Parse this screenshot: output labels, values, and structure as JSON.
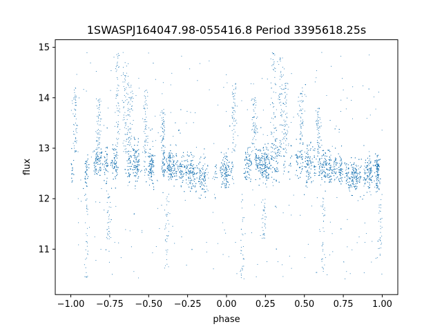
{
  "chart_data": {
    "type": "scatter",
    "title": "1SWASPJ164047.98-055416.8 Period 3395618.25s",
    "xlabel": "phase",
    "ylabel": "flux",
    "xlim": [
      -1.1,
      1.1
    ],
    "ylim": [
      10.1,
      15.15
    ],
    "x_ticks": [
      -1.0,
      -0.75,
      -0.5,
      -0.25,
      0.0,
      0.25,
      0.5,
      0.75,
      1.0
    ],
    "x_tick_labels": [
      "−1.00",
      "−0.75",
      "−0.50",
      "−0.25",
      "0.00",
      "0.25",
      "0.50",
      "0.75",
      "1.00"
    ],
    "y_ticks": [
      11,
      12,
      13,
      14,
      15
    ],
    "y_tick_labels": [
      "11",
      "12",
      "13",
      "14",
      "15"
    ],
    "grid": false,
    "legend": "none",
    "marker_color": "#1f77b4",
    "series": [
      {
        "phase_profile": [
          {
            "x": 0.0,
            "median": 12.55,
            "spread": 0.3
          },
          {
            "x": 0.05,
            "median": 12.55,
            "spread": 0.35
          },
          {
            "x": 0.08,
            "median": 12.35,
            "spread": 0.3
          },
          {
            "x": 0.12,
            "median": 12.65,
            "spread": 0.3
          },
          {
            "x": 0.18,
            "median": 12.75,
            "spread": 0.3
          },
          {
            "x": 0.22,
            "median": 12.7,
            "spread": 0.35
          },
          {
            "x": 0.28,
            "median": 12.65,
            "spread": 0.3
          },
          {
            "x": 0.32,
            "median": 12.75,
            "spread": 0.45
          },
          {
            "x": 0.38,
            "median": 12.75,
            "spread": 0.35
          },
          {
            "x": 0.45,
            "median": 12.7,
            "spread": 0.3
          },
          {
            "x": 0.5,
            "median": 12.65,
            "spread": 0.3
          },
          {
            "x": 0.58,
            "median": 12.7,
            "spread": 0.3
          },
          {
            "x": 0.65,
            "median": 12.65,
            "spread": 0.3
          },
          {
            "x": 0.72,
            "median": 12.6,
            "spread": 0.3
          },
          {
            "x": 0.8,
            "median": 12.45,
            "spread": 0.3
          },
          {
            "x": 0.88,
            "median": 12.45,
            "spread": 0.3
          },
          {
            "x": 0.95,
            "median": 12.55,
            "spread": 0.3
          },
          {
            "x": 1.0,
            "median": 12.55,
            "spread": 0.3
          }
        ],
        "high_outlier_bands": [
          {
            "x": -0.97,
            "y_top": 14.2
          },
          {
            "x": -0.82,
            "y_top": 14.0
          },
          {
            "x": -0.7,
            "y_top": 14.9
          },
          {
            "x": -0.65,
            "y_top": 14.8
          },
          {
            "x": -0.62,
            "y_top": 14.3
          },
          {
            "x": -0.52,
            "y_top": 14.2
          },
          {
            "x": -0.41,
            "y_top": 13.8
          },
          {
            "x": 0.05,
            "y_top": 14.3
          },
          {
            "x": 0.18,
            "y_top": 14.0
          },
          {
            "x": 0.3,
            "y_top": 14.9
          },
          {
            "x": 0.35,
            "y_top": 14.8
          },
          {
            "x": 0.38,
            "y_top": 14.3
          },
          {
            "x": 0.48,
            "y_top": 14.2
          },
          {
            "x": 0.59,
            "y_top": 13.8
          }
        ],
        "low_outlier_bands": [
          {
            "x": -0.9,
            "y_bottom": 10.4
          },
          {
            "x": -0.76,
            "y_bottom": 11.2
          },
          {
            "x": -0.38,
            "y_bottom": 10.6
          },
          {
            "x": 0.1,
            "y_bottom": 10.4
          },
          {
            "x": 0.24,
            "y_bottom": 11.2
          },
          {
            "x": 0.62,
            "y_bottom": 10.6
          },
          {
            "x": 0.99,
            "y_bottom": 11.0
          }
        ],
        "point_count": 8000
      }
    ]
  }
}
